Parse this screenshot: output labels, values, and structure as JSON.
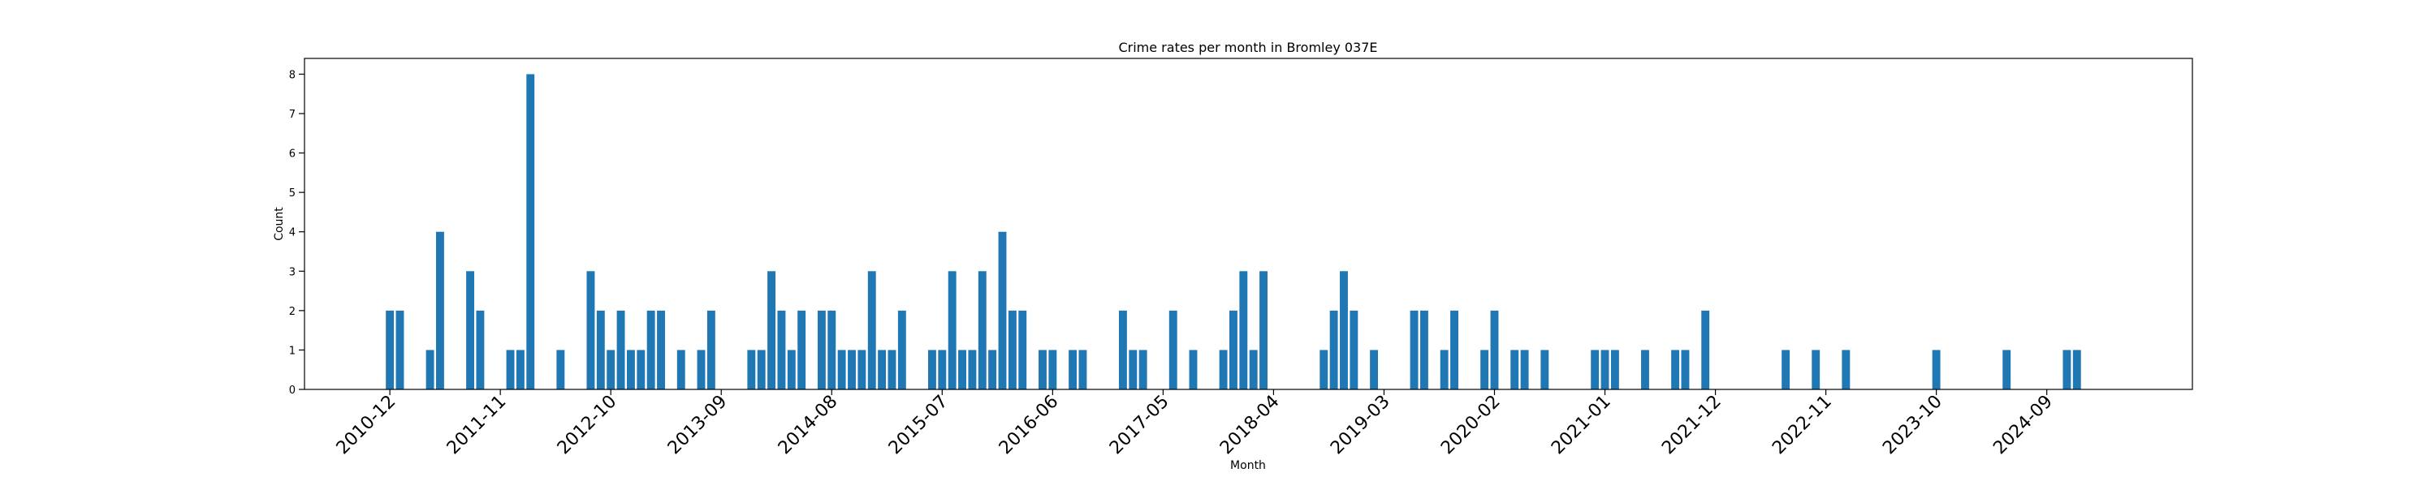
{
  "chart_data": {
    "type": "bar",
    "title": "Crime rates per month in Bromley 037E",
    "xlabel": "Month",
    "ylabel": "Count",
    "ylim": [
      0,
      8.4
    ],
    "yticks": [
      0,
      1,
      2,
      3,
      4,
      5,
      6,
      7,
      8
    ],
    "xlim": [
      -8.5,
      179.5
    ],
    "xtick_positions": [
      0,
      11,
      22,
      33,
      44,
      55,
      66,
      77,
      88,
      99,
      110,
      121,
      132,
      143,
      154,
      165
    ],
    "xtick_labels": [
      "2010-12",
      "2011-11",
      "2012-10",
      "2013-09",
      "2014-08",
      "2015-07",
      "2016-06",
      "2017-05",
      "2018-04",
      "2019-03",
      "2020-02",
      "2021-01",
      "2021-12",
      "2022-11",
      "2023-10",
      "2024-09"
    ],
    "bar_color": "#1f77b4",
    "categories": [
      "2010-12",
      "2011-01",
      "2011-04",
      "2011-05",
      "2011-08",
      "2011-09",
      "2011-12",
      "2012-01",
      "2012-02",
      "2012-05",
      "2012-08",
      "2012-09",
      "2012-10",
      "2012-11",
      "2012-12",
      "2013-01",
      "2013-02",
      "2013-03",
      "2013-05",
      "2013-07",
      "2013-08",
      "2013-12",
      "2014-01",
      "2014-02",
      "2014-03",
      "2014-04",
      "2014-05",
      "2014-07",
      "2014-08",
      "2014-09",
      "2014-10",
      "2014-11",
      "2014-12",
      "2015-01",
      "2015-02",
      "2015-03",
      "2015-06",
      "2015-07",
      "2015-08",
      "2015-09",
      "2015-10",
      "2015-11",
      "2015-12",
      "2016-01",
      "2016-02",
      "2016-03",
      "2016-05",
      "2016-06",
      "2016-08",
      "2016-09",
      "2017-01",
      "2017-02",
      "2017-03",
      "2017-06",
      "2017-08",
      "2017-11",
      "2017-12",
      "2018-01",
      "2018-02",
      "2018-03",
      "2018-09",
      "2018-10",
      "2018-11",
      "2018-12",
      "2019-02",
      "2019-06",
      "2019-07",
      "2019-09",
      "2019-10",
      "2020-01",
      "2020-02",
      "2020-04",
      "2020-05",
      "2020-07",
      "2020-12",
      "2021-01",
      "2021-02",
      "2021-05",
      "2021-08",
      "2021-09",
      "2021-11",
      "2022-07",
      "2022-10",
      "2023-01",
      "2023-10",
      "2024-05",
      "2024-11",
      "2024-12"
    ],
    "x": [
      0,
      1,
      4,
      5,
      8,
      9,
      12,
      13,
      14,
      17,
      20,
      21,
      22,
      23,
      24,
      25,
      26,
      27,
      29,
      31,
      32,
      36,
      37,
      38,
      39,
      40,
      41,
      43,
      44,
      45,
      46,
      47,
      48,
      49,
      50,
      51,
      54,
      55,
      56,
      57,
      58,
      59,
      60,
      61,
      62,
      63,
      65,
      66,
      68,
      69,
      73,
      74,
      75,
      78,
      80,
      83,
      84,
      85,
      86,
      87,
      93,
      94,
      95,
      96,
      98,
      102,
      103,
      105,
      106,
      109,
      110,
      112,
      113,
      115,
      120,
      121,
      122,
      125,
      128,
      129,
      131,
      139,
      142,
      145,
      154,
      161,
      167,
      168
    ],
    "values": [
      2,
      2,
      1,
      4,
      3,
      2,
      1,
      1,
      8,
      1,
      3,
      2,
      1,
      2,
      1,
      1,
      2,
      2,
      1,
      1,
      2,
      1,
      1,
      3,
      2,
      1,
      2,
      2,
      2,
      1,
      1,
      1,
      3,
      1,
      1,
      2,
      1,
      1,
      3,
      1,
      1,
      3,
      1,
      4,
      2,
      2,
      1,
      1,
      1,
      1,
      2,
      1,
      1,
      2,
      1,
      1,
      2,
      3,
      1,
      3,
      1,
      2,
      3,
      2,
      1,
      2,
      2,
      1,
      2,
      1,
      2,
      1,
      1,
      1,
      1,
      1,
      1,
      1,
      1,
      1,
      2,
      1,
      1,
      1,
      1,
      1,
      1,
      1
    ]
  }
}
